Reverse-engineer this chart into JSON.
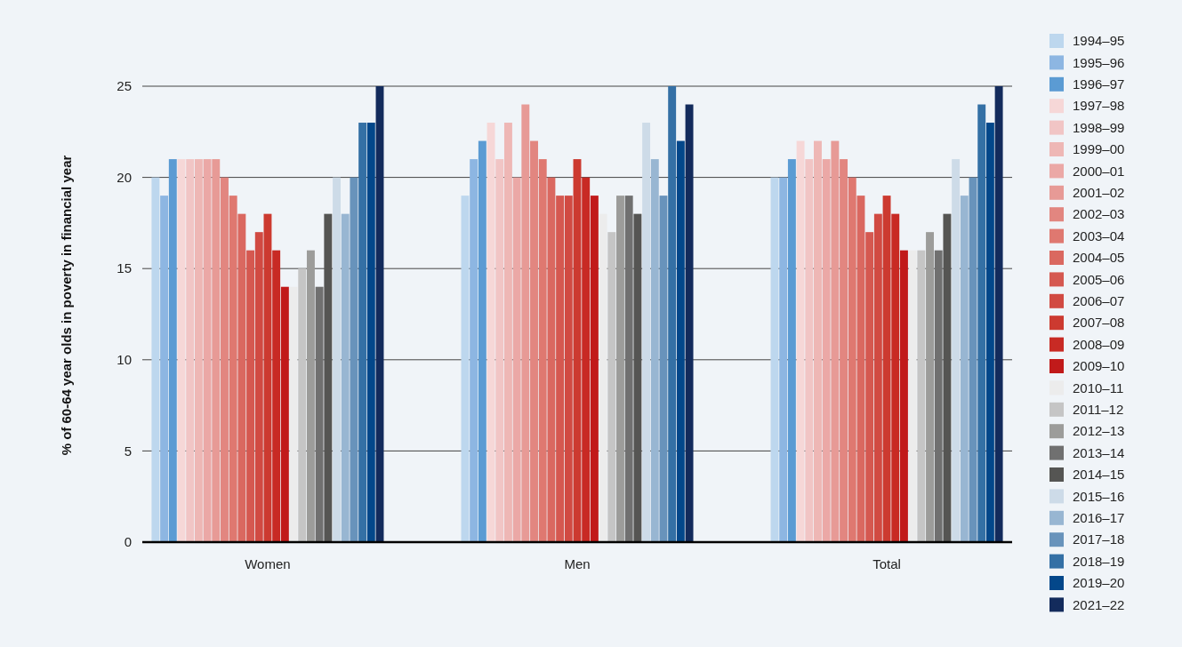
{
  "chart_data": {
    "type": "bar",
    "ylabel": "% of 60-64 year olds in poverty in financial year",
    "categories": [
      "Women",
      "Men",
      "Total"
    ],
    "ylim": [
      0,
      25
    ],
    "yticks": [
      0,
      5,
      10,
      15,
      20,
      25
    ],
    "grid": "y",
    "legend": "right",
    "series": [
      {
        "name": "1994–95",
        "color": "#bdd7ee",
        "values": [
          20,
          19,
          20
        ]
      },
      {
        "name": "1995–96",
        "color": "#8db6e2",
        "values": [
          19,
          21,
          20
        ]
      },
      {
        "name": "1996–97",
        "color": "#5b9bd3",
        "values": [
          21,
          22,
          21
        ]
      },
      {
        "name": "1997–98",
        "color": "#f6d7d7",
        "values": [
          21,
          23,
          22
        ]
      },
      {
        "name": "1998–99",
        "color": "#f1c5c5",
        "values": [
          21,
          21,
          21
        ]
      },
      {
        "name": "1999–00",
        "color": "#eeb7b5",
        "values": [
          21,
          23,
          22
        ]
      },
      {
        "name": "2000–01",
        "color": "#eba8a6",
        "values": [
          21,
          20,
          21
        ]
      },
      {
        "name": "2001–02",
        "color": "#e79a96",
        "values": [
          21,
          24,
          22
        ]
      },
      {
        "name": "2002–03",
        "color": "#e28680",
        "values": [
          20,
          22,
          21
        ]
      },
      {
        "name": "2003–04",
        "color": "#df7870",
        "values": [
          19,
          21,
          20
        ]
      },
      {
        "name": "2004–05",
        "color": "#da6860",
        "values": [
          18,
          20,
          19
        ]
      },
      {
        "name": "2005–06",
        "color": "#d55850",
        "values": [
          16,
          19,
          17
        ]
      },
      {
        "name": "2006–07",
        "color": "#d14a42",
        "values": [
          17,
          19,
          18
        ]
      },
      {
        "name": "2007–08",
        "color": "#cc3a30",
        "values": [
          18,
          21,
          19
        ]
      },
      {
        "name": "2008–09",
        "color": "#c82a24",
        "values": [
          16,
          20,
          18
        ]
      },
      {
        "name": "2009–10",
        "color": "#c11a1a",
        "values": [
          14,
          19,
          16
        ]
      },
      {
        "name": "2010–11",
        "color": "#ececec",
        "values": [
          14,
          18,
          16
        ]
      },
      {
        "name": "2011–12",
        "color": "#c5c5c5",
        "values": [
          15,
          17,
          16
        ]
      },
      {
        "name": "2012–13",
        "color": "#9c9c9a",
        "values": [
          16,
          19,
          17
        ]
      },
      {
        "name": "2013–14",
        "color": "#707070",
        "values": [
          14,
          19,
          16
        ]
      },
      {
        "name": "2014–15",
        "color": "#555553",
        "values": [
          18,
          18,
          18
        ]
      },
      {
        "name": "2015–16",
        "color": "#cddbe8",
        "values": [
          20,
          23,
          21
        ]
      },
      {
        "name": "2016–17",
        "color": "#98b6d2",
        "values": [
          18,
          21,
          19
        ]
      },
      {
        "name": "2017–18",
        "color": "#6893bb",
        "values": [
          20,
          19,
          20
        ]
      },
      {
        "name": "2018–19",
        "color": "#3470a5",
        "values": [
          23,
          25,
          24
        ]
      },
      {
        "name": "2019–20",
        "color": "#03478a",
        "values": [
          23,
          22,
          23
        ]
      },
      {
        "name": "2021–22",
        "color": "#132b5c",
        "values": [
          25,
          24,
          25
        ]
      }
    ]
  }
}
